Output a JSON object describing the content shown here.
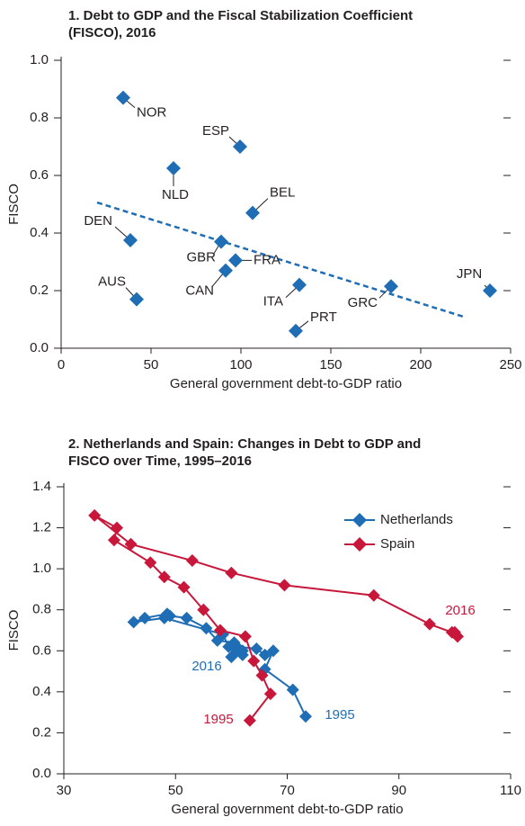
{
  "chart_data": [
    {
      "type": "scatter",
      "title": [
        "1. Debt to GDP and the Fiscal Stabilization Coefficient",
        "(FISCO), 2016"
      ],
      "xlabel": "General government debt-to-GDP ratio",
      "ylabel": "FISCO",
      "labels": [
        "NOR",
        "ESP",
        "NLD",
        "BEL",
        "DEN",
        "GBR",
        "FRA",
        "CAN",
        "ITA",
        "GRC",
        "JPN",
        "AUS",
        "PRT"
      ],
      "x": [
        34.5,
        99.5,
        62.5,
        106.5,
        38.5,
        89,
        97,
        91.5,
        132.5,
        183.5,
        238.5,
        42,
        130.5
      ],
      "y": [
        0.87,
        0.7,
        0.625,
        0.47,
        0.375,
        0.37,
        0.305,
        0.27,
        0.22,
        0.215,
        0.2,
        0.17,
        0.06
      ],
      "color": "#1f6db5",
      "trend": {
        "x": [
          20,
          223.5
        ],
        "y": [
          0.506,
          0.11
        ],
        "color": "#1f6db5",
        "dashed": true
      },
      "xlim": [
        0,
        250
      ],
      "xticks": [
        0,
        50,
        100,
        150,
        200,
        250
      ],
      "ylim": [
        0,
        1
      ],
      "yticks": [
        {
          "value": 0,
          "label": "0.0"
        },
        0.2,
        0.4,
        0.6,
        0.8,
        {
          "value": 1,
          "label": "1.0"
        }
      ]
    },
    {
      "type": "line",
      "title": [
        "2. Netherlands and Spain: Changes in Debt to GDP and",
        "FISCO over Time, 1995–2016"
      ],
      "xlabel": "General government debt-to-GDP ratio",
      "ylabel": "FISCO",
      "series": [
        {
          "name": "Netherlands",
          "color": "#1f6db5",
          "x": [
            73.3,
            71.0,
            66.0,
            67.5,
            66.0,
            64.5,
            61.0,
            60.0,
            62.0,
            60.5,
            57.5,
            55.5,
            52.0,
            49.0,
            48.5,
            44.5,
            42.5,
            48.0,
            58.5,
            59.5,
            61.0,
            62.0
          ],
          "y": [
            0.28,
            0.41,
            0.51,
            0.6,
            0.58,
            0.61,
            0.62,
            0.57,
            0.58,
            0.64,
            0.65,
            0.71,
            0.76,
            0.77,
            0.78,
            0.76,
            0.74,
            0.76,
            0.68,
            0.62,
            0.6,
            0.6
          ]
        },
        {
          "name": "Spain",
          "color": "#c8173a",
          "x": [
            63.3,
            67.0,
            65.5,
            64.0,
            62.5,
            58.0,
            55.0,
            51.5,
            48.0,
            45.5,
            39.0,
            39.5,
            35.5,
            42.0,
            53.0,
            60.0,
            69.5,
            85.5,
            95.5,
            99.5,
            100.5,
            100.0
          ],
          "y": [
            0.26,
            0.39,
            0.48,
            0.55,
            0.67,
            0.7,
            0.8,
            0.91,
            0.96,
            1.03,
            1.14,
            1.2,
            1.26,
            1.12,
            1.04,
            0.98,
            0.92,
            0.87,
            0.73,
            0.69,
            0.67,
            0.69
          ]
        }
      ],
      "annotations": [
        "2016",
        "1995",
        "2016",
        "1995"
      ],
      "legend": "upper right",
      "xlim": [
        30,
        110
      ],
      "xticks": [
        30,
        50,
        70,
        90,
        110
      ],
      "ylim": [
        0,
        1.4
      ],
      "yticks": [
        {
          "value": 0,
          "label": "0.0"
        },
        0.2,
        0.4,
        0.6,
        0.8,
        {
          "value": 1,
          "label": "1.0"
        },
        1.2,
        1.4
      ]
    }
  ]
}
